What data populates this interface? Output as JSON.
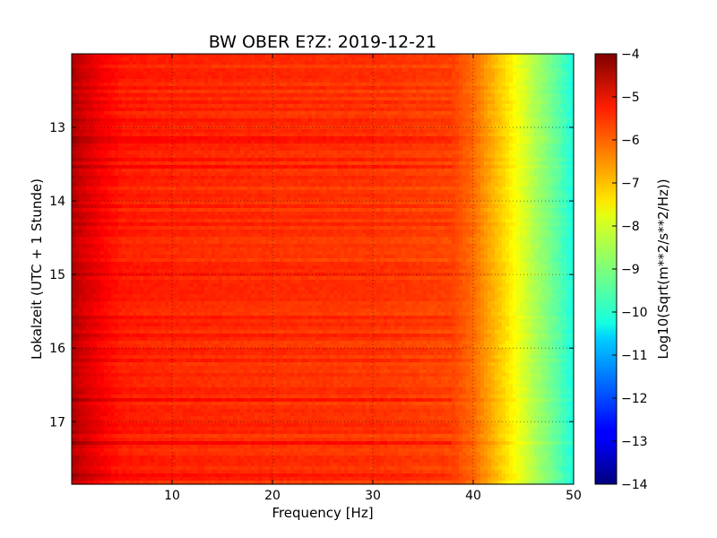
{
  "chart_data": {
    "type": "heatmap",
    "title": "BW OBER E?Z: 2019-12-21",
    "xlabel": "Frequency [Hz]",
    "ylabel": "Lokalzeit (UTC + 1 Stunde)",
    "xlim": [
      0,
      50
    ],
    "ylim": [
      12.0,
      17.85
    ],
    "y_inverted": true,
    "x_ticks": [
      10,
      20,
      30,
      40,
      50
    ],
    "x_tick_labels": [
      "10",
      "20",
      "30",
      "40",
      "50"
    ],
    "y_ticks": [
      13,
      14,
      15,
      16,
      17
    ],
    "y_tick_labels": [
      "13",
      "14",
      "15",
      "16",
      "17"
    ],
    "grid": true,
    "colormap": "jet",
    "colorbar": {
      "label": "Log10(Sqrt(m**2/s**2/Hz))",
      "range": [
        -14,
        -4
      ],
      "ticks": [
        -4,
        -5,
        -6,
        -7,
        -8,
        -9,
        -10,
        -11,
        -12,
        -13,
        -14
      ],
      "tick_labels": [
        "−4",
        "−5",
        "−6",
        "−7",
        "−8",
        "−9",
        "−10",
        "−11",
        "−12",
        "−13",
        "−14"
      ]
    },
    "spectrum_profile": {
      "frequency_hz": [
        0,
        1,
        3,
        5,
        10,
        20,
        30,
        38,
        40,
        42,
        44,
        46,
        48,
        50
      ],
      "log10_amplitude": [
        -4.5,
        -4.8,
        -5.2,
        -5.5,
        -5.6,
        -5.7,
        -5.75,
        -5.9,
        -6.3,
        -7.0,
        -7.7,
        -8.5,
        -9.2,
        -10.0
      ]
    }
  }
}
